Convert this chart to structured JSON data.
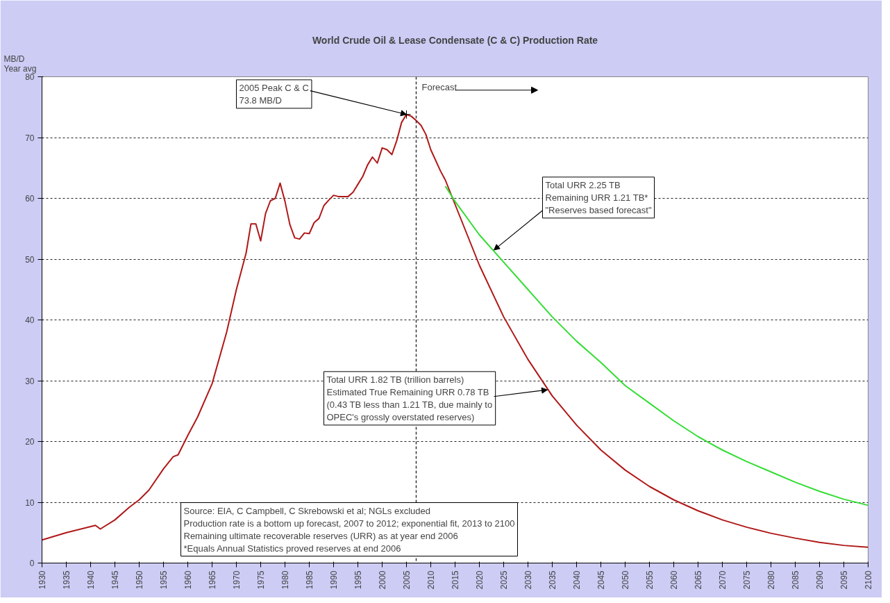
{
  "chart_data": {
    "type": "line",
    "title": "World Crude Oil & Lease Condensate (C & C) Production Rate",
    "ylabel": "MB/D\nYear avg",
    "xlim": [
      1930,
      2100
    ],
    "xticks": [
      1930,
      1935,
      1940,
      1945,
      1950,
      1955,
      1960,
      1965,
      1970,
      1975,
      1980,
      1985,
      1990,
      1995,
      2000,
      2005,
      2010,
      2015,
      2020,
      2025,
      2030,
      2035,
      2040,
      2045,
      2050,
      2055,
      2060,
      2065,
      2070,
      2075,
      2080,
      2085,
      2090,
      2095,
      2100
    ],
    "ylim": [
      0,
      80
    ],
    "yticks": [
      0,
      10,
      20,
      30,
      40,
      50,
      60,
      70,
      80
    ],
    "grid": "y",
    "line_style": "solid",
    "series": [
      {
        "color": "#b01818",
        "x": [
          1930,
          1935,
          1940,
          1941,
          1942,
          1945,
          1948,
          1950,
          1952,
          1955,
          1957,
          1958,
          1960,
          1962,
          1965,
          1968,
          1970,
          1972,
          1973,
          1974,
          1975,
          1976,
          1977,
          1978,
          1979,
          1980,
          1981,
          1982,
          1983,
          1984,
          1985,
          1986,
          1987,
          1988,
          1989,
          1990,
          1991,
          1992,
          1993,
          1994,
          1995,
          1996,
          1997,
          1998,
          1999,
          2000,
          2001,
          2002,
          2003,
          2004,
          2005,
          2006,
          2007,
          2008,
          2009,
          2010,
          2012,
          2013,
          2015,
          2020,
          2025,
          2030,
          2035,
          2040,
          2045,
          2050,
          2055,
          2060,
          2065,
          2070,
          2075,
          2080,
          2085,
          2090,
          2095,
          2100
        ],
        "values": [
          3.8,
          5.0,
          6.0,
          6.2,
          5.6,
          7.1,
          9.2,
          10.4,
          12.0,
          15.5,
          17.5,
          17.8,
          21,
          24,
          29.5,
          38,
          45,
          51,
          55.8,
          55.8,
          53,
          57.5,
          59.6,
          60,
          62.5,
          59.5,
          55.7,
          53.5,
          53.3,
          54.3,
          54.2,
          56,
          56.7,
          58.8,
          59.7,
          60.5,
          60.3,
          60.3,
          60.3,
          61,
          62.3,
          63.6,
          65.5,
          66.8,
          65.8,
          68.3,
          68.0,
          67.2,
          69.5,
          72.5,
          73.8,
          73.5,
          72.8,
          72,
          70.5,
          68,
          64.5,
          63,
          59,
          49,
          40.5,
          33.5,
          27.5,
          22.7,
          18.6,
          15.3,
          12.6,
          10.4,
          8.6,
          7.1,
          5.9,
          4.9,
          4.1,
          3.4,
          2.9,
          2.6
        ]
      },
      {
        "color": "#33dd33",
        "x": [
          2013,
          2015,
          2020,
          2025,
          2030,
          2035,
          2040,
          2045,
          2050,
          2055,
          2060,
          2065,
          2070,
          2075,
          2080,
          2085,
          2090,
          2095,
          2100
        ],
        "values": [
          62,
          59.5,
          54,
          49.5,
          45,
          40.5,
          36.5,
          33,
          29.2,
          26.3,
          23.4,
          20.8,
          18.6,
          16.7,
          15,
          13.3,
          11.8,
          10.5,
          9.5
        ]
      }
    ],
    "ref_lines": [
      {
        "axis": "x",
        "value": 2007,
        "label": "Forecast",
        "line_style": "dashed",
        "color": "#333333"
      }
    ],
    "annotations": [
      {
        "text": "2005 Peak C & C\n73.8 MB/D",
        "x": 2005,
        "y": 73.8
      },
      {
        "text": "Total URR 2.25 TB\nRemaining URR 1.21 TB*\n\"Reserves based forecast\"",
        "x": 2023,
        "y": 51.5
      },
      {
        "text": "Total URR 1.82 TB (trillion barrels)\nEstimated True Remaining URR 0.78 TB\n(0.43 TB less than 1.21 TB, due mainly to\nOPEC's grossly overstated reserves)",
        "x": 2034,
        "y": 28.5
      },
      "Source: EIA, C Campbell, C Skrebowski et al; NGLs excluded\nProduction rate is a bottom up forecast, 2007 to 2012; exponential fit, 2013 to 2100\nRemaining ultimate recoverable reserves (URR) as at year end 2006\n*Equals Annual Statistics proved reserves at end 2006"
    ]
  }
}
